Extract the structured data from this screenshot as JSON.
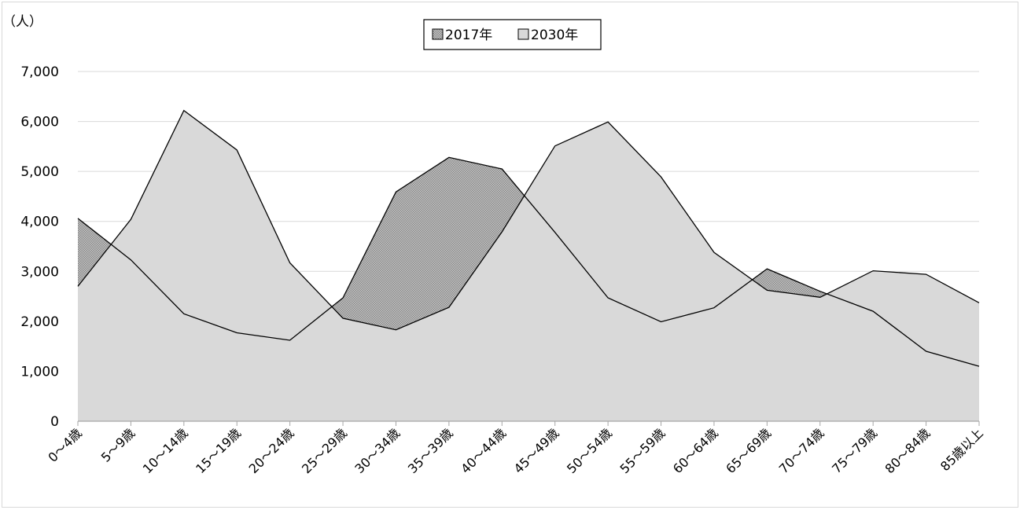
{
  "chart_data": {
    "type": "area",
    "title": "",
    "ylabel": "（人）",
    "xlabel": "",
    "categories": [
      "0～4歳",
      "5～9歳",
      "10～14歳",
      "15～19歳",
      "20～24歳",
      "25～29歳",
      "30～34歳",
      "35～39歳",
      "40～44歳",
      "45～49歳",
      "50～54歳",
      "55～59歳",
      "60～64歳",
      "65～69歳",
      "70～74歳",
      "75～79歳",
      "80～84歳",
      "85歳以上"
    ],
    "series": [
      {
        "name": "2017年",
        "fill": "#9a9a9a",
        "pattern": "checker",
        "values": [
          4060,
          3230,
          2150,
          1770,
          1620,
          2470,
          4590,
          5280,
          5050,
          3780,
          2470,
          1990,
          2270,
          3050,
          2600,
          2200,
          1400,
          1100
        ]
      },
      {
        "name": "2030年",
        "fill": "#d9d9d9",
        "pattern": "solid",
        "values": [
          2700,
          4040,
          6220,
          5430,
          3170,
          2060,
          1830,
          2280,
          3790,
          5510,
          5990,
          4890,
          3380,
          2620,
          2480,
          3010,
          2940,
          2370
        ]
      }
    ],
    "ylim": [
      0,
      7000
    ],
    "yticks": [
      "0",
      "1,000",
      "2,000",
      "3,000",
      "4,000",
      "5,000",
      "6,000",
      "7,000"
    ],
    "grid": true,
    "legend_position": "top-center"
  }
}
